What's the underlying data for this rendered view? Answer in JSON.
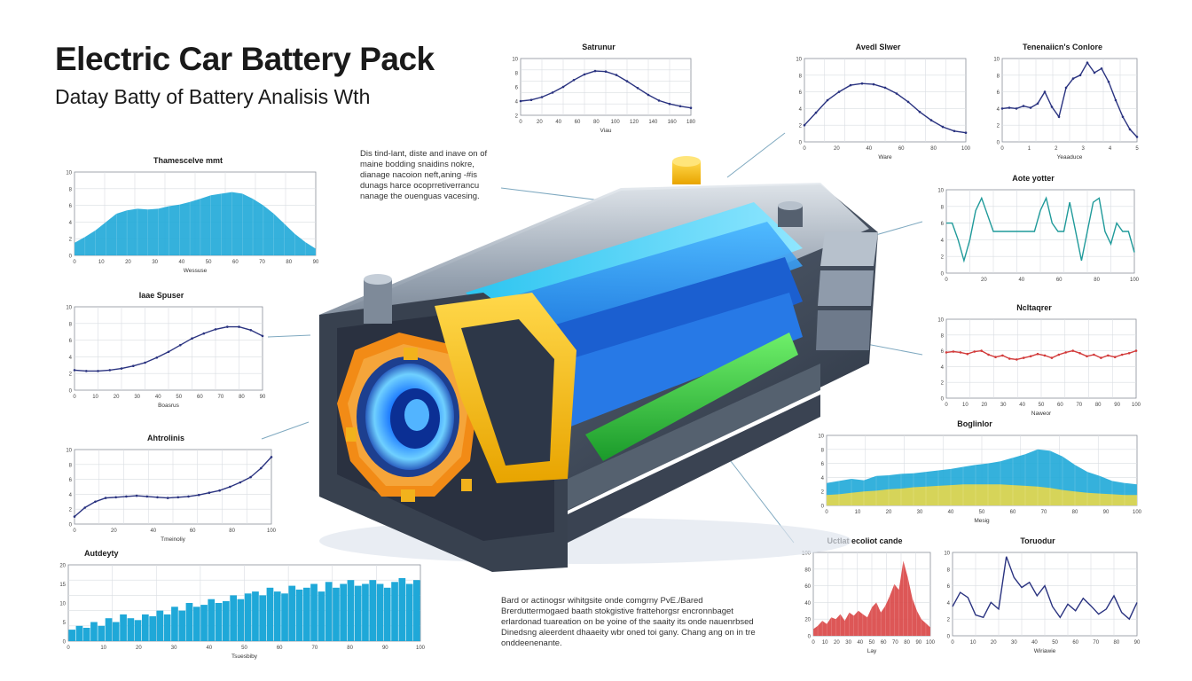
{
  "header": {
    "title": "Electric Car Battery Pack",
    "subtitle": "Datay Batty of Battery Analisis Wth"
  },
  "notes": {
    "top": [
      "Dis tind-lant, diste and inave on of",
      "maine bodding snaidins nokre,",
      "dianage nacoion neft,aning -#is",
      "dunags harce ocoprretiverrancu",
      "nanage the ouenguas vacesing."
    ],
    "bottom": [
      "Bard or actinogsr wihitgsite onde comgrny PvE./Bared",
      "Brerduttermogaed baath stokgistive frattehorgsr encronnbaget",
      "erlardonad tuareation on be yoine of the saaity its onde nauenrbsed",
      "Dinedsng aleerdent dhaaeity wbr oned toi gany. Chang ang on in tre",
      "onddeenenante."
    ]
  },
  "colors": {
    "blue_area": "#1fa8d8",
    "navy_line": "#2a3380",
    "teal_line": "#1f9a9a",
    "red_line": "#d23a3a",
    "red_area": "#d94545",
    "yellow_area": "#e8d84a",
    "grid": "#d9dde2"
  },
  "chart_data": [
    {
      "id": "c1",
      "type": "area",
      "title": "Thamescelve mmt",
      "xlabel": "Wessuse",
      "ylabel": "",
      "ylim": [
        0,
        10
      ],
      "yticks": [
        "10",
        "8",
        "6",
        "4",
        "2",
        "0"
      ],
      "xticks": [
        "0",
        "10",
        "20",
        "30",
        "40",
        "50",
        "60",
        "70",
        "80",
        "90"
      ],
      "values": [
        1.5,
        2.2,
        3.0,
        4.0,
        5.0,
        5.4,
        5.6,
        5.5,
        5.6,
        5.9,
        6.1,
        6.4,
        6.8,
        7.2,
        7.4,
        7.6,
        7.4,
        6.8,
        6.0,
        5.0,
        3.8,
        2.6,
        1.6,
        0.8
      ]
    },
    {
      "id": "c2",
      "type": "line",
      "title": "Satrunur",
      "xlabel": "Viau",
      "ylabel": "",
      "ylim": [
        0,
        10
      ],
      "yticks": [
        "10",
        "8",
        "6",
        "4",
        "2"
      ],
      "xticks": [
        "0",
        "20",
        "40",
        "60",
        "80",
        "100",
        "120",
        "140",
        "160",
        "180"
      ],
      "values": [
        2.5,
        2.7,
        3.2,
        4.0,
        5.0,
        6.2,
        7.2,
        7.8,
        7.7,
        7.1,
        6.0,
        4.8,
        3.6,
        2.6,
        2.0,
        1.6,
        1.3
      ]
    },
    {
      "id": "c3",
      "type": "line",
      "title": "Avedl Slwer",
      "xlabel": "Ware",
      "ylabel": "",
      "ylim": [
        0,
        10
      ],
      "yticks": [
        "10",
        "8",
        "6",
        "4",
        "2",
        "0"
      ],
      "xticks": [
        "0",
        "20",
        "40",
        "60",
        "80",
        "100"
      ],
      "values": [
        2.0,
        3.5,
        5.0,
        6.0,
        6.8,
        7.0,
        6.9,
        6.5,
        5.8,
        4.8,
        3.6,
        2.6,
        1.8,
        1.3,
        1.1
      ]
    },
    {
      "id": "c4",
      "type": "line",
      "title": "Tenenaiicn's Conlore",
      "xlabel": "Yeaaduce",
      "ylabel": "",
      "ylim": [
        0,
        10
      ],
      "yticks": [
        "10",
        "8",
        "6",
        "4",
        "2",
        "0"
      ],
      "xticks": [
        "0",
        "1",
        "2",
        "3",
        "4",
        "5"
      ],
      "values": [
        4.0,
        4.1,
        4.0,
        4.3,
        4.1,
        4.6,
        6.0,
        4.2,
        3.0,
        6.5,
        7.6,
        8.0,
        9.5,
        8.3,
        8.8,
        7.2,
        5.0,
        3.0,
        1.5,
        0.6
      ]
    },
    {
      "id": "c5",
      "type": "line",
      "title": "Aote yotter",
      "xlabel": "",
      "ylabel": "",
      "ylim": [
        0,
        10
      ],
      "yticks": [
        "10",
        "8",
        "6",
        "4",
        "2",
        "0"
      ],
      "xticks": [
        "0",
        "20",
        "40",
        "60",
        "80",
        "100"
      ],
      "values": [
        6.0,
        6.0,
        4.0,
        1.5,
        4.0,
        7.5,
        9.0,
        7.0,
        5.0,
        5.0,
        5.0,
        5.0,
        5.0,
        5.0,
        5.0,
        5.0,
        7.5,
        9.0,
        6.0,
        5.0,
        5.0,
        8.5,
        5.0,
        1.5,
        5.0,
        8.5,
        9.0,
        5.0,
        3.5,
        6.0,
        5.0,
        5.0,
        2.5
      ]
    },
    {
      "id": "c6",
      "type": "line",
      "title": "Ncltaqrer",
      "xlabel": "Naweor",
      "ylabel": "",
      "ylim": [
        0,
        10
      ],
      "yticks": [
        "10",
        "8",
        "6",
        "4",
        "2",
        "0"
      ],
      "xticks": [
        "0",
        "10",
        "20",
        "30",
        "40",
        "50",
        "60",
        "70",
        "80",
        "90",
        "100"
      ],
      "values": [
        5.8,
        5.9,
        5.8,
        5.6,
        5.9,
        6.0,
        5.5,
        5.2,
        5.4,
        5.0,
        4.9,
        5.1,
        5.3,
        5.6,
        5.4,
        5.1,
        5.5,
        5.8,
        6.0,
        5.7,
        5.3,
        5.5,
        5.1,
        5.4,
        5.2,
        5.5,
        5.7,
        6.0
      ]
    },
    {
      "id": "c7",
      "type": "line",
      "title": "Iaae Spuser",
      "xlabel": "Boasrus",
      "ylabel": "",
      "ylim": [
        0,
        10
      ],
      "yticks": [
        "10",
        "8",
        "6",
        "4",
        "2",
        "0"
      ],
      "xticks": [
        "0",
        "10",
        "20",
        "30",
        "40",
        "50",
        "60",
        "70",
        "80",
        "90"
      ],
      "values": [
        2.4,
        2.3,
        2.3,
        2.4,
        2.6,
        2.9,
        3.3,
        3.9,
        4.6,
        5.4,
        6.2,
        6.8,
        7.3,
        7.6,
        7.6,
        7.2,
        6.5
      ]
    },
    {
      "id": "c8",
      "type": "line",
      "title": "Ahtrolinis",
      "xlabel": "Tmeinoliy",
      "ylabel": "",
      "ylim": [
        0,
        10
      ],
      "yticks": [
        "10",
        "8",
        "6",
        "4",
        "2",
        "0"
      ],
      "xticks": [
        "0",
        "20",
        "40",
        "60",
        "80",
        "100"
      ],
      "values": [
        1.0,
        2.2,
        3.0,
        3.5,
        3.6,
        3.7,
        3.8,
        3.7,
        3.6,
        3.5,
        3.6,
        3.7,
        3.9,
        4.2,
        4.5,
        5.0,
        5.6,
        6.3,
        7.5,
        9.0
      ]
    },
    {
      "id": "c9",
      "type": "area",
      "title": "Boglinlor",
      "xlabel": "Mesig",
      "ylabel": "",
      "ylim": [
        0,
        10
      ],
      "yticks": [
        "10",
        "8",
        "6",
        "4",
        "2",
        "0"
      ],
      "xticks": [
        "0",
        "10",
        "20",
        "30",
        "40",
        "50",
        "60",
        "70",
        "80",
        "90",
        "100"
      ],
      "series": [
        {
          "name": "",
          "values": [
            3.2,
            3.5,
            3.8,
            3.6,
            4.2,
            4.3,
            4.5,
            4.6,
            4.8,
            5.0,
            5.2,
            5.5,
            5.8,
            6.0,
            6.3,
            6.8,
            7.3,
            8.0,
            7.8,
            7.0,
            5.8,
            4.8,
            4.2,
            3.5,
            3.2,
            3.0
          ]
        },
        {
          "name": "",
          "values": [
            1.5,
            1.6,
            1.8,
            2.0,
            2.1,
            2.3,
            2.4,
            2.6,
            2.7,
            2.8,
            2.9,
            3.0,
            3.0,
            3.0,
            3.0,
            2.9,
            2.8,
            2.7,
            2.5,
            2.2,
            2.0,
            1.8,
            1.7,
            1.6,
            1.5,
            1.5
          ]
        }
      ]
    },
    {
      "id": "c10",
      "type": "area",
      "title": "Uctlat ecoliot cande",
      "xlabel": "Lay",
      "ylabel": "",
      "ylim": [
        0,
        100
      ],
      "yticks": [
        "100",
        "80",
        "60",
        "40",
        "20",
        "0"
      ],
      "xticks": [
        "0",
        "10",
        "20",
        "30",
        "40",
        "50",
        "60",
        "70",
        "80",
        "90",
        "100"
      ],
      "values": [
        8,
        12,
        18,
        14,
        22,
        20,
        26,
        18,
        28,
        24,
        30,
        26,
        22,
        34,
        40,
        28,
        36,
        48,
        62,
        55,
        90,
        70,
        45,
        30,
        20,
        15,
        10
      ]
    },
    {
      "id": "c11",
      "type": "line",
      "title": "Toruodur",
      "xlabel": "Wiriawie",
      "ylabel": "",
      "ylim": [
        0,
        10
      ],
      "yticks": [
        "10",
        "8",
        "6",
        "4",
        "2",
        "0"
      ],
      "xticks": [
        "0",
        "10",
        "20",
        "30",
        "40",
        "50",
        "60",
        "70",
        "80",
        "90"
      ],
      "values": [
        3.5,
        5.2,
        4.6,
        2.5,
        2.2,
        4.0,
        3.2,
        9.5,
        7.0,
        5.8,
        6.4,
        4.8,
        6.0,
        3.5,
        2.2,
        3.8,
        3.0,
        4.5,
        3.6,
        2.6,
        3.2,
        4.8,
        2.8,
        2.0,
        4.0
      ]
    },
    {
      "id": "c12",
      "type": "bar",
      "title": "Autdeyty",
      "xlabel": "Tsuesbiby",
      "ylabel": "",
      "ylim": [
        0,
        20
      ],
      "yticks": [
        "20",
        "15",
        "10",
        "5",
        "0"
      ],
      "xticks": [
        "0",
        "10",
        "20",
        "30",
        "40",
        "50",
        "60",
        "70",
        "80",
        "90",
        "100"
      ],
      "values": [
        3,
        4,
        3.5,
        5,
        4,
        6,
        5,
        7,
        6,
        5.5,
        7,
        6.5,
        8,
        7,
        9,
        8,
        10,
        9,
        9.5,
        11,
        10,
        10.5,
        12,
        11,
        12.5,
        13,
        12,
        14,
        13,
        12.5,
        14.5,
        13.5,
        14,
        15,
        13,
        15.5,
        14,
        15,
        16,
        14.5,
        15,
        16,
        15,
        14,
        15.5,
        16.5,
        15,
        16
      ]
    }
  ]
}
